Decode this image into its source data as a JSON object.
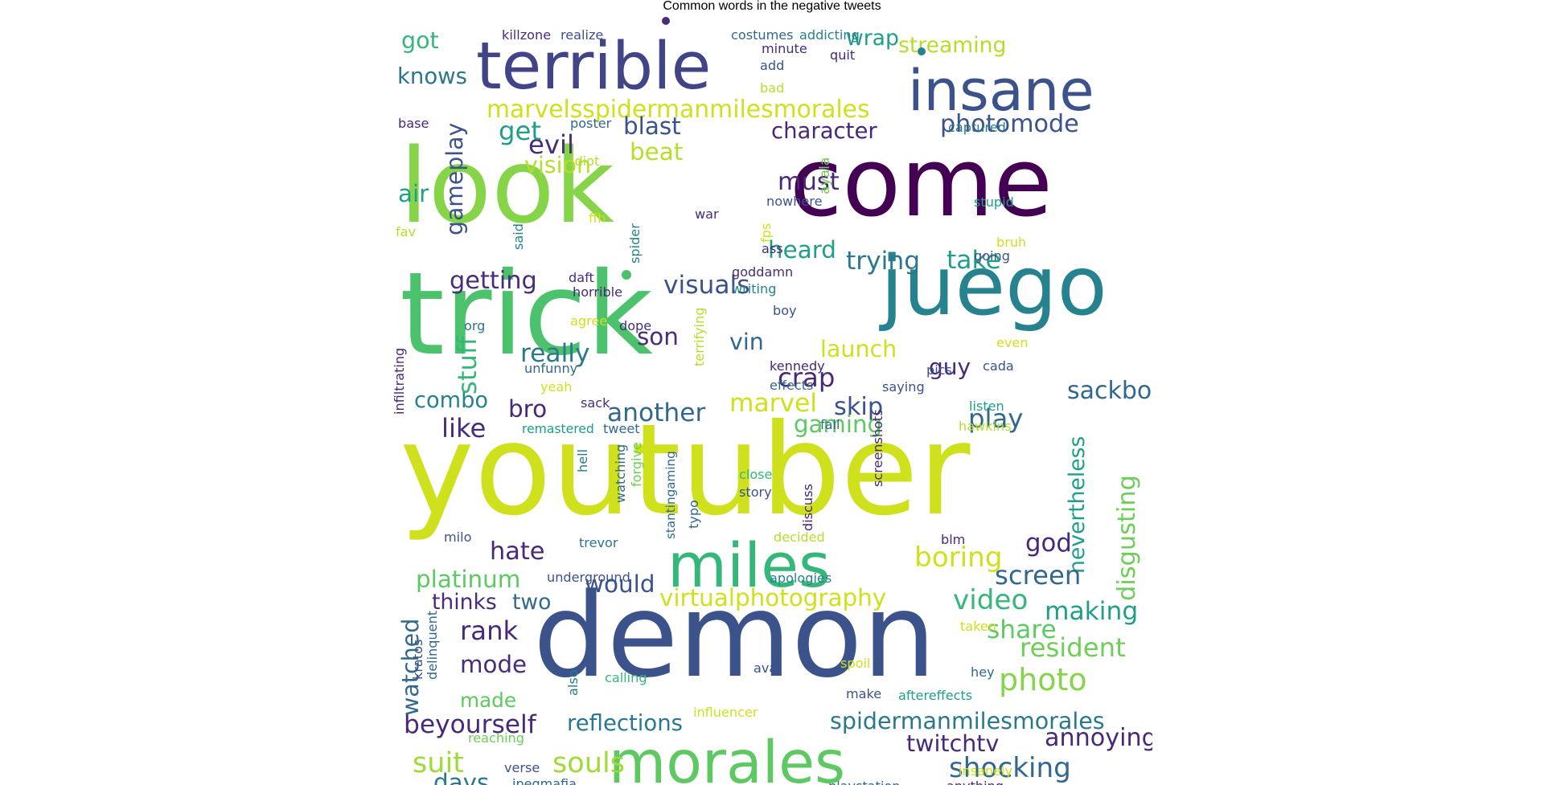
{
  "title": "Common words in the negative tweets",
  "words": [
    {
      "text": "youtuber",
      "color": "#cfe11c"
    },
    {
      "text": "demon",
      "color": "#3b528b"
    },
    {
      "text": "trick",
      "color": "#4cc26c"
    },
    {
      "text": "look",
      "color": "#86d549"
    },
    {
      "text": "come",
      "color": "#440154"
    },
    {
      "text": "juego",
      "color": "#26828e"
    },
    {
      "text": "terrible",
      "color": "#414487"
    },
    {
      "text": "insane",
      "color": "#3b528b"
    },
    {
      "text": "miles",
      "color": "#35b779"
    },
    {
      "text": "morales",
      "color": "#5ec962"
    },
    {
      "text": "marvelsspidermanmilesmorales",
      "color": "#cfe11c"
    },
    {
      "text": "photomode",
      "color": "#3b528b"
    },
    {
      "text": "character",
      "color": "#482878"
    },
    {
      "text": "virtualphotography",
      "color": "#cfe11c"
    },
    {
      "text": "spidermanmilesmorales",
      "color": "#2a788e"
    },
    {
      "text": "beyourself",
      "color": "#482878"
    },
    {
      "text": "reflections",
      "color": "#2a788e"
    },
    {
      "text": "platinum",
      "color": "#5ec962"
    },
    {
      "text": "resident",
      "color": "#6ece58"
    },
    {
      "text": "photo",
      "color": "#86d549"
    },
    {
      "text": "shocking",
      "color": "#31688e"
    },
    {
      "text": "twitchtv",
      "color": "#482878"
    },
    {
      "text": "annoying",
      "color": "#482878"
    },
    {
      "text": "souls",
      "color": "#a0da39"
    },
    {
      "text": "suit",
      "color": "#a0da39"
    },
    {
      "text": "days",
      "color": "#2a788e"
    },
    {
      "text": "sackboy",
      "color": "#31688e"
    },
    {
      "text": "nevertheless",
      "color": "#1f9e89"
    },
    {
      "text": "disgusting",
      "color": "#6ece58"
    },
    {
      "text": "boring",
      "color": "#cfe11c"
    },
    {
      "text": "video",
      "color": "#35b779"
    },
    {
      "text": "screen",
      "color": "#31688e"
    },
    {
      "text": "making",
      "color": "#1f9e89"
    },
    {
      "text": "share",
      "color": "#5ec962"
    },
    {
      "text": "god",
      "color": "#482878"
    },
    {
      "text": "hate",
      "color": "#482878"
    },
    {
      "text": "would",
      "color": "#3b528b"
    },
    {
      "text": "thinks",
      "color": "#472d7b"
    },
    {
      "text": "two",
      "color": "#31688e"
    },
    {
      "text": "rank",
      "color": "#482878"
    },
    {
      "text": "mode",
      "color": "#472d7b"
    },
    {
      "text": "made",
      "color": "#5ec962"
    },
    {
      "text": "watched",
      "color": "#31688e"
    },
    {
      "text": "gaming",
      "color": "#5ec962"
    },
    {
      "text": "marvel",
      "color": "#cfe11c"
    },
    {
      "text": "another",
      "color": "#31688e"
    },
    {
      "text": "like",
      "color": "#472d7b"
    },
    {
      "text": "bro",
      "color": "#482878"
    },
    {
      "text": "combo",
      "color": "#26828e"
    },
    {
      "text": "stuff",
      "color": "#35b779"
    },
    {
      "text": "really",
      "color": "#2a788e"
    },
    {
      "text": "getting",
      "color": "#472d7b"
    },
    {
      "text": "visuals",
      "color": "#3b528b"
    },
    {
      "text": "son",
      "color": "#472d7b"
    },
    {
      "text": "vin",
      "color": "#31688e"
    },
    {
      "text": "launch",
      "color": "#cfe11c"
    },
    {
      "text": "crap",
      "color": "#482878"
    },
    {
      "text": "guy",
      "color": "#482878"
    },
    {
      "text": "play",
      "color": "#31688e"
    },
    {
      "text": "skip",
      "color": "#3b528b"
    },
    {
      "text": "trying",
      "color": "#2a788e"
    },
    {
      "text": "take",
      "color": "#1f9e89"
    },
    {
      "text": "heard",
      "color": "#1f9e89"
    },
    {
      "text": "must",
      "color": "#482878"
    },
    {
      "text": "beat",
      "color": "#b5de2b"
    },
    {
      "text": "evil",
      "color": "#472d7b"
    },
    {
      "text": "get",
      "color": "#1f9e89"
    },
    {
      "text": "vision",
      "color": "#b5de2b"
    },
    {
      "text": "blast",
      "color": "#3b528b"
    },
    {
      "text": "gameplay",
      "color": "#3b528b"
    },
    {
      "text": "air",
      "color": "#1f9e89"
    },
    {
      "text": "knows",
      "color": "#2a788e"
    },
    {
      "text": "got",
      "color": "#35b779"
    },
    {
      "text": "wrap",
      "color": "#1f9e89"
    },
    {
      "text": "streaming",
      "color": "#b5de2b"
    },
    {
      "text": "killzone",
      "color": "#472d7b"
    },
    {
      "text": "realize",
      "color": "#3b528b"
    },
    {
      "text": "costumes",
      "color": "#31688e"
    },
    {
      "text": "addicting",
      "color": "#26828e"
    },
    {
      "text": "minute",
      "color": "#472d7b"
    },
    {
      "text": "quit",
      "color": "#482878"
    },
    {
      "text": "add",
      "color": "#3b528b"
    },
    {
      "text": "bad",
      "color": "#b5de2b"
    },
    {
      "text": "base",
      "color": "#482878"
    },
    {
      "text": "poster",
      "color": "#31688e"
    },
    {
      "text": "captured",
      "color": "#2a788e"
    },
    {
      "text": "idiot",
      "color": "#b5de2b"
    },
    {
      "text": "ayala",
      "color": "#6ece58"
    },
    {
      "text": "nowhere",
      "color": "#3b528b"
    },
    {
      "text": "stupid",
      "color": "#1f9e89"
    },
    {
      "text": "war",
      "color": "#472d7b"
    },
    {
      "text": "fps",
      "color": "#cfe11c"
    },
    {
      "text": "said",
      "color": "#26828e"
    },
    {
      "text": "ffh",
      "color": "#cfe11c"
    },
    {
      "text": "spider",
      "color": "#26828e"
    },
    {
      "text": "fav",
      "color": "#b5de2b"
    },
    {
      "text": "ass",
      "color": "#472d7b"
    },
    {
      "text": "bruh",
      "color": "#cfe11c"
    },
    {
      "text": "going",
      "color": "#3b528b"
    },
    {
      "text": "daft",
      "color": "#472d7b"
    },
    {
      "text": "goddamn",
      "color": "#472d7b"
    },
    {
      "text": "horrible",
      "color": "#482878"
    },
    {
      "text": "writing",
      "color": "#26828e"
    },
    {
      "text": "terrifying",
      "color": "#b5de2b"
    },
    {
      "text": "boy",
      "color": "#3b528b"
    },
    {
      "text": "org",
      "color": "#2a788e"
    },
    {
      "text": "agree",
      "color": "#cfe11c"
    },
    {
      "text": "dope",
      "color": "#472d7b"
    },
    {
      "text": "even",
      "color": "#cfe11c"
    },
    {
      "text": "infiltrating",
      "color": "#482878"
    },
    {
      "text": "unfunny",
      "color": "#31688e"
    },
    {
      "text": "kennedy",
      "color": "#482878"
    },
    {
      "text": "pics",
      "color": "#3b528b"
    },
    {
      "text": "cada",
      "color": "#3b528b"
    },
    {
      "text": "yeah",
      "color": "#cfe11c"
    },
    {
      "text": "effects",
      "color": "#31688e"
    },
    {
      "text": "saying",
      "color": "#3b528b"
    },
    {
      "text": "sack",
      "color": "#472d7b"
    },
    {
      "text": "listen",
      "color": "#1f9e89"
    },
    {
      "text": "remastered",
      "color": "#1f9e89"
    },
    {
      "text": "tweet",
      "color": "#31688e"
    },
    {
      "text": "fall",
      "color": "#31688e"
    },
    {
      "text": "hawkins",
      "color": "#b5de2b"
    },
    {
      "text": "hell",
      "color": "#2a788e"
    },
    {
      "text": "watching",
      "color": "#31688e"
    },
    {
      "text": "forgive",
      "color": "#6ece58"
    },
    {
      "text": "screenshots",
      "color": "#482878"
    },
    {
      "text": "close",
      "color": "#35b779"
    },
    {
      "text": "story",
      "color": "#3b528b"
    },
    {
      "text": "stantingaming",
      "color": "#31688e"
    },
    {
      "text": "typo",
      "color": "#31688e"
    },
    {
      "text": "discuss",
      "color": "#482878"
    },
    {
      "text": "milo",
      "color": "#3b528b"
    },
    {
      "text": "decided",
      "color": "#b5de2b"
    },
    {
      "text": "blm",
      "color": "#482878"
    },
    {
      "text": "trevor",
      "color": "#2a788e"
    },
    {
      "text": "underground",
      "color": "#3b528b"
    },
    {
      "text": "apologies",
      "color": "#26828e"
    },
    {
      "text": "delinquent",
      "color": "#31688e"
    },
    {
      "text": "kratos",
      "color": "#3b528b"
    },
    {
      "text": "also",
      "color": "#2a788e"
    },
    {
      "text": "taken",
      "color": "#cfe11c"
    },
    {
      "text": "spoil",
      "color": "#cfe11c"
    },
    {
      "text": "ava",
      "color": "#3b528b"
    },
    {
      "text": "hey",
      "color": "#31688e"
    },
    {
      "text": "calling",
      "color": "#35b779"
    },
    {
      "text": "make",
      "color": "#3b528b"
    },
    {
      "text": "aftereffects",
      "color": "#1f9e89"
    },
    {
      "text": "influencer",
      "color": "#cfe11c"
    },
    {
      "text": "reaching",
      "color": "#6ece58"
    },
    {
      "text": "verse",
      "color": "#3b528b"
    },
    {
      "text": "jpegmafia",
      "color": "#31688e"
    },
    {
      "text": "insanely",
      "color": "#cfe11c"
    },
    {
      "text": "playstation",
      "color": "#31688e"
    },
    {
      "text": "anything",
      "color": "#482878"
    },
    {
      "text": "dot-1",
      "color": "#472d7b"
    },
    {
      "text": "dot-2",
      "color": "#26828e"
    },
    {
      "text": "dot-3",
      "color": "#4cc26c"
    }
  ]
}
